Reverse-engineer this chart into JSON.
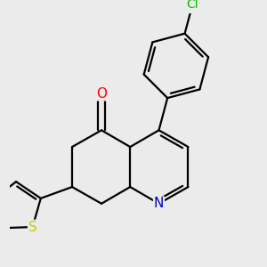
{
  "bg_color": "#ebebeb",
  "bond_color": "#000000",
  "bond_width": 1.6,
  "atom_colors": {
    "O": "#ff0000",
    "N": "#0000cc",
    "S": "#cccc00",
    "Cl": "#00bb00"
  },
  "font_size_atoms": 11,
  "font_size_cl": 10
}
